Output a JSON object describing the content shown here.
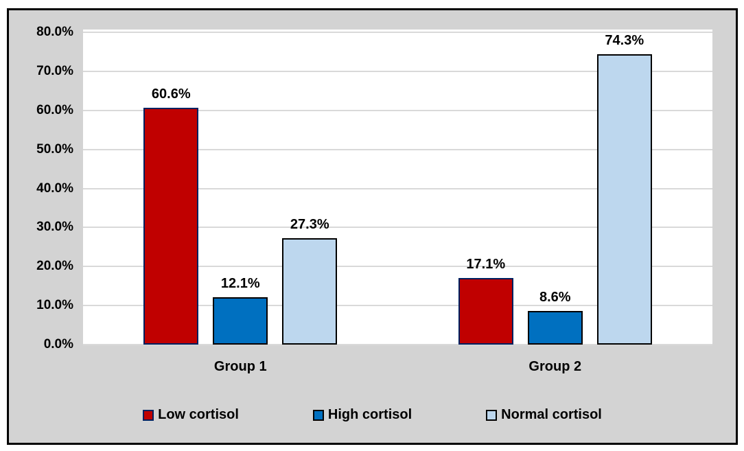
{
  "chart_data": {
    "type": "bar",
    "title": "",
    "xlabel": "",
    "ylabel": "",
    "categories": [
      "Group 1",
      "Group 2"
    ],
    "series": [
      {
        "name": "Low cortisol",
        "values": [
          60.6,
          17.1
        ],
        "fill": "#c00000",
        "border": "#002060"
      },
      {
        "name": "High cortisol",
        "values": [
          12.1,
          8.6
        ],
        "fill": "#0070c0",
        "border": "#000000"
      },
      {
        "name": "Normal cortisol",
        "values": [
          27.3,
          74.3
        ],
        "fill": "#bdd7ee",
        "border": "#000000"
      }
    ],
    "data_labels": [
      [
        "60.6%",
        "12.1%",
        "27.3%"
      ],
      [
        "17.1%",
        "8.6%",
        "74.3%"
      ]
    ],
    "y_ticks": [
      {
        "value": 0,
        "label": "0.0%"
      },
      {
        "value": 10,
        "label": "10.0%"
      },
      {
        "value": 20,
        "label": "20.0%"
      },
      {
        "value": 30,
        "label": "30.0%"
      },
      {
        "value": 40,
        "label": "40.0%"
      },
      {
        "value": 50,
        "label": "50.0%"
      },
      {
        "value": 60,
        "label": "60.0%"
      },
      {
        "value": 70,
        "label": "70.0%"
      },
      {
        "value": 80,
        "label": "80.0%"
      }
    ],
    "ylim": [
      0,
      80
    ],
    "grid": true,
    "legend_position": "bottom"
  },
  "colors": {
    "frame_background": "#d3d3d3",
    "frame_border": "#000000",
    "plot_background": "#ffffff",
    "gridline": "#d9d9d9",
    "text": "#000000"
  }
}
